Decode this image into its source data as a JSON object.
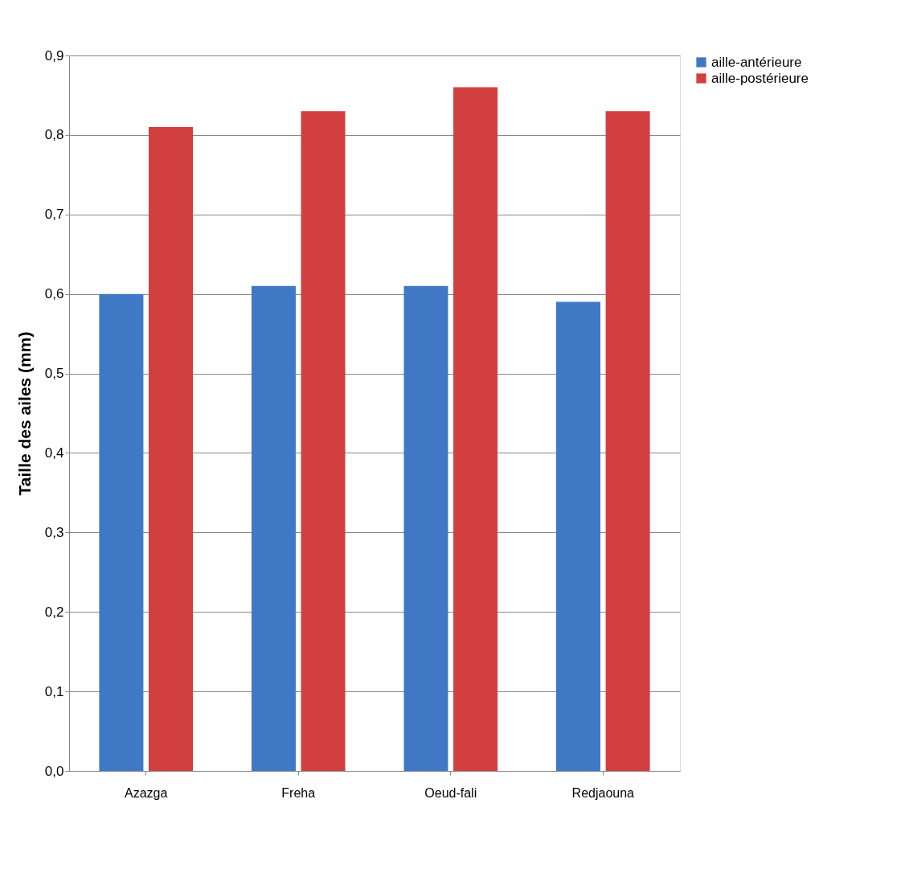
{
  "chart_data": {
    "type": "bar",
    "ylabel": "Taille des ailes (mm)",
    "categories": [
      "Azazga",
      "Freha",
      "Oeud-fali",
      "Redjaouna"
    ],
    "series": [
      {
        "name": "aille-antérieure",
        "color": "#3f78c4",
        "values": [
          0.6,
          0.61,
          0.61,
          0.59
        ]
      },
      {
        "name": "aille-postérieure",
        "color": "#d13f3f",
        "values": [
          0.81,
          0.83,
          0.86,
          0.83
        ]
      }
    ],
    "ylim": [
      0,
      0.9
    ],
    "yticks": [
      {
        "value": 0,
        "label": "0,0"
      },
      {
        "value": 0.1,
        "label": "0,1"
      },
      {
        "value": 0.2,
        "label": "0,2"
      },
      {
        "value": 0.3,
        "label": "0,3"
      },
      {
        "value": 0.4,
        "label": "0,4"
      },
      {
        "value": 0.5,
        "label": "0,5"
      },
      {
        "value": 0.6,
        "label": "0,6"
      },
      {
        "value": 0.7,
        "label": "0,7"
      },
      {
        "value": 0.8,
        "label": "0,8"
      },
      {
        "value": 0.9,
        "label": "0,9"
      }
    ],
    "grid": "y",
    "legend": "right"
  }
}
